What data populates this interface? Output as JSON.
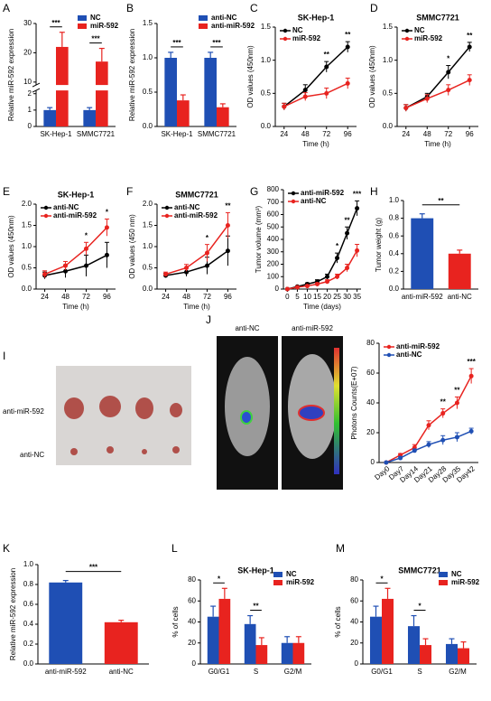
{
  "chart_data": [
    {
      "type": "bar",
      "panel": "A",
      "ylabel": "Relative miR-592 expression",
      "categories": [
        "SK-Hep-1",
        "SMMC7721"
      ],
      "series": [
        {
          "name": "NC",
          "color": "#1f4fb4",
          "values": [
            1.0,
            1.0
          ],
          "errors": [
            0.15,
            0.15
          ]
        },
        {
          "name": "miR-592",
          "color": "#e8231f",
          "values": [
            22,
            17
          ],
          "errors": [
            5,
            4.5
          ]
        }
      ],
      "ylim": [
        0,
        30
      ],
      "ybreak": [
        2.2,
        9
      ],
      "yticks": [
        0,
        1,
        2,
        10,
        20,
        30
      ],
      "legend": "upper right",
      "annotations": [
        {
          "category": "SK-Hep-1",
          "text": "***"
        },
        {
          "category": "SMMC7721",
          "text": "***"
        }
      ]
    },
    {
      "type": "bar",
      "panel": "B",
      "ylabel": "Relative miR-592 expression",
      "categories": [
        "SK-Hep-1",
        "SMMC7721"
      ],
      "series": [
        {
          "name": "anti-NC",
          "color": "#1f4fb4",
          "values": [
            1.0,
            1.0
          ],
          "errors": [
            0.08,
            0.08
          ]
        },
        {
          "name": "anti-miR-592",
          "color": "#e8231f",
          "values": [
            0.38,
            0.28
          ],
          "errors": [
            0.08,
            0.05
          ]
        }
      ],
      "ylim": [
        0,
        1.5
      ],
      "yticks": [
        {
          "value": 0,
          "label": "0.0"
        },
        0.5,
        {
          "value": 1,
          "label": "1.0"
        },
        1.5
      ],
      "legend": "upper right",
      "annotations": [
        {
          "category": "SK-Hep-1",
          "text": "***"
        },
        {
          "category": "SMMC7721",
          "text": "***"
        }
      ]
    },
    {
      "type": "line",
      "panel": "C",
      "title": "SK-Hep-1",
      "xlabel": "Time (h)",
      "ylabel": "OD values (450nm)",
      "x": [
        24,
        48,
        72,
        96
      ],
      "xlim": [
        14,
        106
      ],
      "xticks": [
        24,
        48,
        72,
        96
      ],
      "series": [
        {
          "name": "NC",
          "color": "#000000",
          "values": [
            0.3,
            0.55,
            0.9,
            1.2
          ],
          "errors": [
            0.05,
            0.08,
            0.08,
            0.08
          ]
        },
        {
          "name": "miR-592",
          "color": "#e8231f",
          "values": [
            0.3,
            0.45,
            0.5,
            0.65
          ],
          "errors": [
            0.05,
            0.06,
            0.08,
            0.08
          ]
        }
      ],
      "ylim": [
        0,
        1.5
      ],
      "yticks": [
        {
          "value": 0,
          "label": "0.0"
        },
        0.5,
        {
          "value": 1,
          "label": "1.0"
        },
        1.5
      ],
      "legend": "upper left",
      "annotations": [
        {
          "x": 72,
          "text": "**"
        },
        {
          "x": 96,
          "text": "**"
        }
      ]
    },
    {
      "type": "line",
      "panel": "D",
      "title": "SMMC7721",
      "xlabel": "Time (h)",
      "ylabel": "OD values (450nm)",
      "x": [
        24,
        48,
        72,
        96
      ],
      "xlim": [
        14,
        106
      ],
      "xticks": [
        24,
        48,
        72,
        96
      ],
      "series": [
        {
          "name": "NC",
          "color": "#000000",
          "values": [
            0.28,
            0.45,
            0.82,
            1.2
          ],
          "errors": [
            0.05,
            0.05,
            0.1,
            0.07
          ]
        },
        {
          "name": "miR-592",
          "color": "#e8231f",
          "values": [
            0.28,
            0.42,
            0.55,
            0.7
          ],
          "errors": [
            0.05,
            0.06,
            0.08,
            0.08
          ]
        }
      ],
      "ylim": [
        0,
        1.5
      ],
      "yticks": [
        {
          "value": 0,
          "label": "0.0"
        },
        0.5,
        {
          "value": 1,
          "label": "1.0"
        },
        1.5
      ],
      "legend": "upper left",
      "annotations": [
        {
          "x": 72,
          "text": "*"
        },
        {
          "x": 96,
          "text": "**"
        }
      ]
    },
    {
      "type": "line",
      "panel": "E",
      "title": "SK-Hep-1",
      "xlabel": "Time (h)",
      "ylabel": "OD values (450nm)",
      "x": [
        24,
        48,
        72,
        96
      ],
      "xlim": [
        14,
        106
      ],
      "xticks": [
        24,
        48,
        72,
        96
      ],
      "series": [
        {
          "name": "anti-NC",
          "color": "#000000",
          "values": [
            0.32,
            0.42,
            0.55,
            0.8
          ],
          "errors": [
            0.08,
            0.15,
            0.25,
            0.3
          ]
        },
        {
          "name": "anti-miR-592",
          "color": "#e8231f",
          "values": [
            0.35,
            0.55,
            0.95,
            1.45
          ],
          "errors": [
            0.08,
            0.1,
            0.15,
            0.2
          ]
        }
      ],
      "ylim": [
        0,
        2
      ],
      "yticks": [
        {
          "value": 0,
          "label": "0.0"
        },
        0.5,
        {
          "value": 1,
          "label": "1.0"
        },
        1.5,
        {
          "value": 2,
          "label": "2.0"
        }
      ],
      "legend": "upper left",
      "annotations": [
        {
          "x": 72,
          "text": "*"
        },
        {
          "x": 96,
          "text": "*"
        }
      ]
    },
    {
      "type": "line",
      "panel": "F",
      "title": "SMMC7721",
      "xlabel": "Time (h)",
      "ylabel": "OD values (450 nm)",
      "x": [
        24,
        48,
        72,
        96
      ],
      "xlim": [
        14,
        106
      ],
      "xticks": [
        24,
        48,
        72,
        96
      ],
      "series": [
        {
          "name": "anti-NC",
          "color": "#000000",
          "values": [
            0.32,
            0.4,
            0.55,
            0.9
          ],
          "errors": [
            0.05,
            0.1,
            0.2,
            0.35
          ]
        },
        {
          "name": "anti-miR-592",
          "color": "#e8231f",
          "values": [
            0.35,
            0.5,
            0.85,
            1.5
          ],
          "errors": [
            0.05,
            0.08,
            0.2,
            0.3
          ]
        }
      ],
      "ylim": [
        0,
        2
      ],
      "yticks": [
        {
          "value": 0,
          "label": "0.0"
        },
        0.5,
        {
          "value": 1,
          "label": "1.0"
        },
        1.5,
        {
          "value": 2,
          "label": "2.0"
        }
      ],
      "legend": "upper left",
      "annotations": [
        {
          "x": 72,
          "text": "*"
        },
        {
          "x": 96,
          "text": "**"
        }
      ]
    },
    {
      "type": "line",
      "panel": "G",
      "xlabel": "Time (days)",
      "ylabel": "Tumor volume (mm³)",
      "x": [
        0,
        5,
        10,
        15,
        20,
        25,
        30,
        35
      ],
      "xlim": [
        -2,
        37
      ],
      "xticks": [
        0,
        5,
        10,
        15,
        20,
        25,
        30,
        35
      ],
      "series": [
        {
          "name": "anti-miR-592",
          "color": "#000000",
          "values": [
            0,
            20,
            40,
            60,
            100,
            250,
            450,
            650
          ],
          "errors": [
            0,
            5,
            10,
            15,
            20,
            40,
            50,
            60
          ]
        },
        {
          "name": "anti-NC",
          "color": "#e8231f",
          "values": [
            0,
            15,
            25,
            40,
            60,
            100,
            170,
            310
          ],
          "errors": [
            0,
            5,
            8,
            10,
            15,
            20,
            30,
            50
          ]
        }
      ],
      "ylim": [
        0,
        800
      ],
      "yticks": [
        0,
        100,
        200,
        300,
        400,
        500,
        600,
        700,
        800
      ],
      "legend": "upper left",
      "annotations": [
        {
          "x": 25,
          "text": "*"
        },
        {
          "x": 30,
          "text": "**"
        },
        {
          "x": 35,
          "text": "***"
        }
      ]
    },
    {
      "type": "bar",
      "panel": "H",
      "ylabel": "Tumor weight (g)",
      "categories": [
        "anti-miR-592",
        "anti-NC"
      ],
      "series": [
        {
          "colors": [
            "#1f4fb4",
            "#e8231f"
          ],
          "values": [
            0.8,
            0.4
          ],
          "errors": [
            0.05,
            0.04
          ]
        }
      ],
      "ylim": [
        0,
        1
      ],
      "yticks": [
        {
          "value": 0,
          "label": "0.0"
        },
        0.2,
        0.4,
        0.6,
        0.8,
        {
          "value": 1,
          "label": "1.0"
        }
      ],
      "bracket": "**"
    },
    {
      "type": "line",
      "ylabel": "Photons Counts(E+07)",
      "categories": [
        "Day0",
        "Day7",
        "Day14",
        "Day21",
        "Day28",
        "Day35",
        "Day42"
      ],
      "series": [
        {
          "name": "anti-miR-592",
          "color": "#e8231f",
          "values": [
            0,
            5,
            10,
            25,
            33,
            40,
            58
          ],
          "errors": [
            0,
            1,
            2,
            3,
            3,
            4,
            5
          ]
        },
        {
          "name": "anti-NC",
          "color": "#1f4fb4",
          "values": [
            0,
            3,
            8,
            12,
            15,
            17,
            21
          ],
          "errors": [
            0,
            1,
            1,
            2,
            3,
            3,
            2
          ]
        }
      ],
      "ylim": [
        0,
        80
      ],
      "yticks": [
        0,
        20,
        40,
        60,
        80
      ],
      "legend": "upper left",
      "annotations": [
        {
          "x": "Day28",
          "text": "**"
        },
        {
          "x": "Day35",
          "text": "**"
        },
        {
          "x": "Day42",
          "text": "***"
        }
      ]
    },
    {
      "type": "bar",
      "panel": "K",
      "ylabel": "Relative miR-592 expression",
      "categories": [
        "anti-miR-592",
        "anti-NC"
      ],
      "series": [
        {
          "colors": [
            "#1f4fb4",
            "#e8231f"
          ],
          "values": [
            0.82,
            0.42
          ],
          "errors": [
            0.02,
            0.02
          ]
        }
      ],
      "ylim": [
        0,
        1
      ],
      "yticks": [
        {
          "value": 0,
          "label": "0.0"
        },
        0.2,
        0.4,
        0.6,
        0.8,
        {
          "value": 1,
          "label": "1.0"
        }
      ],
      "bracket": "***"
    },
    {
      "type": "bar",
      "panel": "L",
      "title": "SK-Hep-1",
      "ylabel": "% of cells",
      "categories": [
        "G0/G1",
        "S",
        "G2/M"
      ],
      "series": [
        {
          "name": "NC",
          "color": "#1f4fb4",
          "values": [
            45,
            38,
            20
          ],
          "errors": [
            10,
            8,
            6
          ]
        },
        {
          "name": "miR-592",
          "color": "#e8231f",
          "values": [
            62,
            18,
            20
          ],
          "errors": [
            10,
            7,
            6
          ]
        }
      ],
      "ylim": [
        0,
        80
      ],
      "yticks": [
        0,
        20,
        40,
        60,
        80
      ],
      "legend": "upper right",
      "annotations": [
        {
          "category": "G0/G1",
          "text": "*"
        },
        {
          "category": "S",
          "text": "**"
        }
      ]
    },
    {
      "type": "bar",
      "panel": "M",
      "title": "SMMC7721",
      "ylabel": "% of cells",
      "categories": [
        "G0/G1",
        "S",
        "G2/M"
      ],
      "series": [
        {
          "name": "NC",
          "color": "#1f4fb4",
          "values": [
            45,
            36,
            19
          ],
          "errors": [
            10,
            10,
            5
          ]
        },
        {
          "name": "miR-592",
          "color": "#e8231f",
          "values": [
            62,
            18,
            15
          ],
          "errors": [
            10,
            6,
            6
          ]
        }
      ],
      "ylim": [
        0,
        80
      ],
      "yticks": [
        0,
        20,
        40,
        60,
        80
      ],
      "legend": "upper right",
      "annotations": [
        {
          "category": "G0/G1",
          "text": "*"
        },
        {
          "category": "S",
          "text": "*"
        }
      ]
    }
  ],
  "images": [
    {
      "panel": "I",
      "labels": [
        "anti-miR-592",
        "anti-NC"
      ]
    },
    {
      "panel": "J",
      "labels": [
        "anti-NC",
        "anti-miR-592"
      ]
    }
  ]
}
